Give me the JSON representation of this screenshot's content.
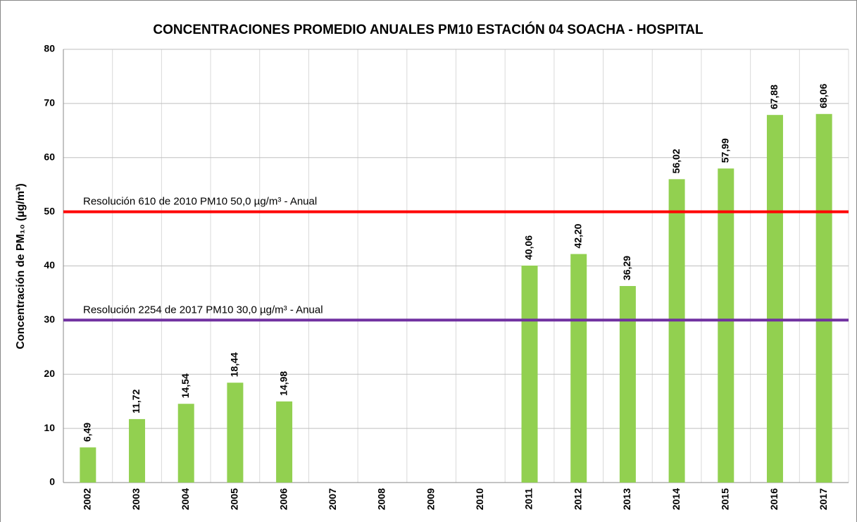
{
  "chart_data": {
    "type": "bar",
    "title": "CONCENTRACIONES PROMEDIO ANUALES PM10 ESTACIÓN 04 SOACHA - HOSPITAL",
    "y_label": "Concentración de PM₁₀ (µg/m³)",
    "categories": [
      "2002",
      "2003",
      "2004",
      "2005",
      "2006",
      "2007",
      "2008",
      "2009",
      "2010",
      "2011",
      "2012",
      "2013",
      "2014",
      "2015",
      "2016",
      "2017"
    ],
    "values": [
      6.49,
      11.72,
      14.54,
      18.44,
      14.98,
      null,
      null,
      null,
      null,
      40.06,
      42.2,
      36.29,
      56.02,
      57.99,
      67.88,
      68.06
    ],
    "value_labels": [
      "6,49",
      "11,72",
      "14,54",
      "18,44",
      "14,98",
      null,
      null,
      null,
      null,
      "40,06",
      "42,20",
      "36,29",
      "56,02",
      "57,99",
      "67,88",
      "68,06"
    ],
    "color": "#92d050",
    "ylim": [
      0,
      80
    ],
    "yticks": [
      0,
      10,
      20,
      30,
      40,
      50,
      60,
      70,
      80
    ],
    "grid": true,
    "reference_lines": [
      {
        "value": 50,
        "label": "Resolución 610 de 2010 PM10 50,0 µg/m³ - Anual",
        "color": "#ff0000"
      },
      {
        "value": 30,
        "label": "Resolución 2254 de 2017 PM10 30,0 µg/m³ - Anual",
        "color": "#7030a0"
      }
    ]
  }
}
